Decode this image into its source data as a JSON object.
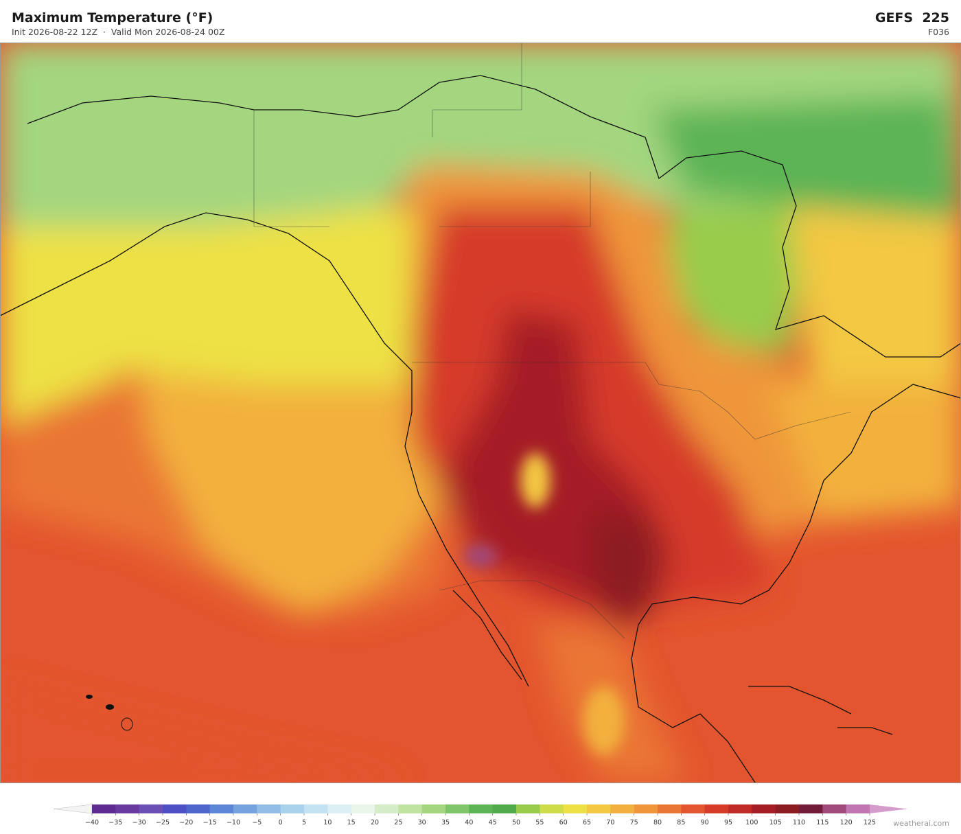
{
  "header": {
    "title": "Maximum Temperature  (°F)",
    "subtitle": "Init 2026-08-22 12Z  ·  Valid Mon 2026-08-24 00Z",
    "model": "GEFS  225",
    "forecast_hour": "F036"
  },
  "colorbar": {
    "labels": [
      "−40",
      "−35",
      "−30",
      "−25",
      "−20",
      "−15",
      "−10",
      "−5",
      "0",
      "5",
      "10",
      "15",
      "20",
      "25",
      "30",
      "35",
      "40",
      "45",
      "50",
      "55",
      "60",
      "65",
      "70",
      "75",
      "80",
      "85",
      "90",
      "95",
      "100",
      "105",
      "110",
      "115",
      "120",
      "125"
    ],
    "colors": [
      "#5e2c91",
      "#6a3b9e",
      "#6b4fb5",
      "#4e4fc4",
      "#4f66cc",
      "#5c86d6",
      "#76a3de",
      "#93bde6",
      "#a9d2ed",
      "#c4e3f2",
      "#dceff5",
      "#e8f5e8",
      "#d5ecc8",
      "#bfe3a0",
      "#a3d67f",
      "#7fc66a",
      "#5cb455",
      "#4fab4a",
      "#99cc4b",
      "#cfdc4a",
      "#ede145",
      "#f3c843",
      "#f2b13e",
      "#ef963a",
      "#ea7634",
      "#e3552e",
      "#d63b29",
      "#c02a27",
      "#a51e25",
      "#8c1b22",
      "#731c3a",
      "#a04a7c",
      "#c076b0"
    ],
    "under_color": "#f4f4f4",
    "over_color": "#d49ccb"
  },
  "footer": {
    "credit": "weatherai.com"
  }
}
